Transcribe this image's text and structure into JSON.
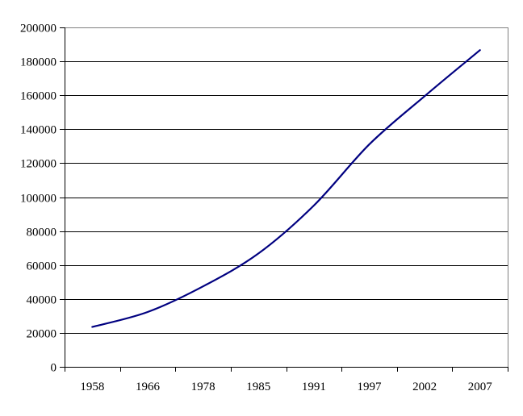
{
  "chart_data": {
    "type": "line",
    "title": "",
    "xlabel": "",
    "ylabel": "",
    "categories": [
      "1958",
      "1966",
      "1978",
      "1985",
      "1991",
      "1997",
      "2002",
      "2007"
    ],
    "series": [
      {
        "values": [
          23500,
          32300,
          47400,
          66800,
          95000,
          131000,
          159500,
          186600
        ],
        "color": "#000080",
        "smoothed": true,
        "line_width": 2.2
      }
    ],
    "ylim": [
      0,
      200000
    ],
    "y_tick_step": 20000,
    "y_tick_labels": [
      "0",
      "20000",
      "40000",
      "60000",
      "80000",
      "100000",
      "120000",
      "140000",
      "160000",
      "180000",
      "200000"
    ],
    "grid": "horizontal",
    "legend_position": "none",
    "colors": {
      "background": "#ffffff",
      "gridline": "#000000",
      "plot_border": "#808080",
      "axis": "#000000",
      "tick": "#000000",
      "text": "#000000"
    }
  }
}
